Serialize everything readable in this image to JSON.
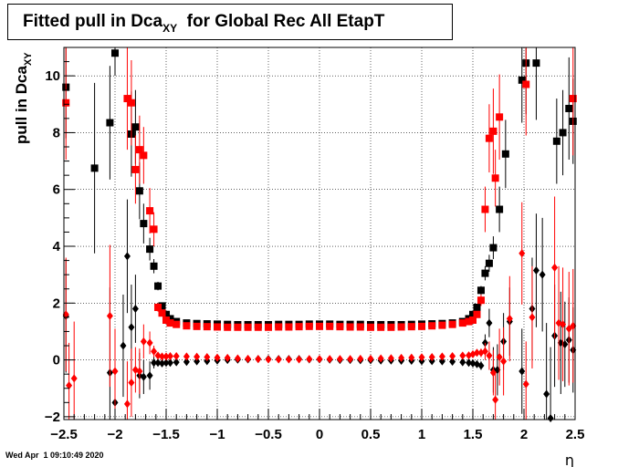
{
  "chart_data": {
    "type": "scatter",
    "title": {
      "main": "Fitted pull in Dca",
      "sub": "XY",
      "tail": "for Global Rec All EtapT"
    },
    "xlabel": "η",
    "ylabel": {
      "main": "pull in Dca",
      "sub": "XY"
    },
    "xlim": [
      -2.5,
      2.5
    ],
    "ylim": [
      -2.1,
      11.0
    ],
    "x_ticks": [
      -2.5,
      -2,
      -1.5,
      -1,
      -0.5,
      0,
      0.5,
      1,
      1.5,
      2,
      2.5
    ],
    "x_tick_labels": [
      "−2.5",
      "−2",
      "−1.5",
      "−1",
      "−0.5",
      "0",
      "0.5",
      "1",
      "1.5",
      "2",
      "2.5"
    ],
    "y_ticks": [
      -2,
      0,
      2,
      4,
      6,
      8,
      10
    ],
    "y_tick_labels": [
      "−2",
      "0",
      "2",
      "4",
      "6",
      "8",
      "10"
    ],
    "grid": true,
    "series": [
      {
        "color": "#000000",
        "marker": "square",
        "points": [
          [
            -2.48,
            9.6,
            1.8
          ],
          [
            -2.2,
            6.75,
            3.0
          ],
          [
            -2.05,
            8.35,
            2.0
          ],
          [
            -2.0,
            10.8,
            0.8
          ],
          [
            -1.84,
            7.95,
            1.5
          ],
          [
            -1.8,
            8.2,
            1.3
          ],
          [
            -1.76,
            5.95,
            1.0
          ],
          [
            -1.72,
            4.8,
            0.7
          ],
          [
            -1.66,
            3.9,
            0.4
          ],
          [
            -1.62,
            3.3,
            0.25
          ],
          [
            -1.58,
            2.6,
            0.15
          ],
          [
            -1.54,
            1.9,
            0.1
          ],
          [
            -1.5,
            1.6,
            0.08
          ],
          [
            -1.46,
            1.45,
            0.06
          ],
          [
            -1.4,
            1.35,
            0.05
          ],
          [
            -1.3,
            1.3,
            0.05
          ],
          [
            -1.2,
            1.28,
            0.05
          ],
          [
            -1.1,
            1.27,
            0.05
          ],
          [
            -1.0,
            1.26,
            0.05
          ],
          [
            -0.9,
            1.25,
            0.05
          ],
          [
            -0.8,
            1.24,
            0.05
          ],
          [
            -0.7,
            1.24,
            0.05
          ],
          [
            -0.6,
            1.24,
            0.05
          ],
          [
            -0.5,
            1.24,
            0.05
          ],
          [
            -0.4,
            1.25,
            0.05
          ],
          [
            -0.3,
            1.25,
            0.05
          ],
          [
            -0.2,
            1.25,
            0.05
          ],
          [
            -0.1,
            1.26,
            0.05
          ],
          [
            0.0,
            1.26,
            0.05
          ],
          [
            0.1,
            1.26,
            0.05
          ],
          [
            0.2,
            1.25,
            0.05
          ],
          [
            0.3,
            1.25,
            0.05
          ],
          [
            0.4,
            1.25,
            0.05
          ],
          [
            0.5,
            1.24,
            0.05
          ],
          [
            0.6,
            1.24,
            0.05
          ],
          [
            0.7,
            1.24,
            0.05
          ],
          [
            0.8,
            1.24,
            0.05
          ],
          [
            0.9,
            1.25,
            0.05
          ],
          [
            1.0,
            1.26,
            0.05
          ],
          [
            1.1,
            1.27,
            0.05
          ],
          [
            1.2,
            1.28,
            0.05
          ],
          [
            1.3,
            1.3,
            0.05
          ],
          [
            1.4,
            1.35,
            0.05
          ],
          [
            1.46,
            1.45,
            0.06
          ],
          [
            1.5,
            1.6,
            0.08
          ],
          [
            1.54,
            1.85,
            0.1
          ],
          [
            1.58,
            2.45,
            0.15
          ],
          [
            1.62,
            3.05,
            0.25
          ],
          [
            1.66,
            3.4,
            0.3
          ],
          [
            1.7,
            3.95,
            0.4
          ],
          [
            1.76,
            5.3,
            0.8
          ],
          [
            1.82,
            7.25,
            1.2
          ],
          [
            1.98,
            9.85,
            1.5
          ],
          [
            2.02,
            10.45,
            1.8
          ],
          [
            2.12,
            10.45,
            2.0
          ],
          [
            2.32,
            7.7,
            1.5
          ],
          [
            2.38,
            8.0,
            1.5
          ],
          [
            2.44,
            8.85,
            1.8
          ],
          [
            2.48,
            8.4,
            1.5
          ]
        ]
      },
      {
        "color": "#ff0000",
        "marker": "square",
        "points": [
          [
            -2.48,
            9.05,
            2.0
          ],
          [
            -1.88,
            9.2,
            1.8
          ],
          [
            -1.84,
            9.05,
            1.5
          ],
          [
            -1.8,
            6.7,
            1.2
          ],
          [
            -1.76,
            7.4,
            1.2
          ],
          [
            -1.72,
            7.2,
            1.0
          ],
          [
            -1.66,
            5.25,
            0.8
          ],
          [
            -1.62,
            4.6,
            0.6
          ],
          [
            -1.58,
            1.85,
            0.15
          ],
          [
            -1.54,
            1.65,
            0.1
          ],
          [
            -1.5,
            1.4,
            0.08
          ],
          [
            -1.46,
            1.3,
            0.06
          ],
          [
            -1.4,
            1.25,
            0.05
          ],
          [
            -1.3,
            1.2,
            0.05
          ],
          [
            -1.2,
            1.18,
            0.05
          ],
          [
            -1.1,
            1.17,
            0.05
          ],
          [
            -1.0,
            1.16,
            0.05
          ],
          [
            -0.9,
            1.15,
            0.05
          ],
          [
            -0.8,
            1.15,
            0.05
          ],
          [
            -0.7,
            1.15,
            0.05
          ],
          [
            -0.6,
            1.15,
            0.05
          ],
          [
            -0.5,
            1.15,
            0.05
          ],
          [
            -0.4,
            1.16,
            0.05
          ],
          [
            -0.3,
            1.16,
            0.05
          ],
          [
            -0.2,
            1.17,
            0.05
          ],
          [
            -0.1,
            1.18,
            0.05
          ],
          [
            0.0,
            1.18,
            0.05
          ],
          [
            0.1,
            1.18,
            0.05
          ],
          [
            0.2,
            1.17,
            0.05
          ],
          [
            0.3,
            1.16,
            0.05
          ],
          [
            0.4,
            1.16,
            0.05
          ],
          [
            0.5,
            1.15,
            0.05
          ],
          [
            0.6,
            1.15,
            0.05
          ],
          [
            0.7,
            1.15,
            0.05
          ],
          [
            0.8,
            1.16,
            0.05
          ],
          [
            0.9,
            1.17,
            0.05
          ],
          [
            1.0,
            1.18,
            0.05
          ],
          [
            1.1,
            1.2,
            0.05
          ],
          [
            1.2,
            1.22,
            0.05
          ],
          [
            1.3,
            1.25,
            0.05
          ],
          [
            1.4,
            1.3,
            0.05
          ],
          [
            1.46,
            1.35,
            0.06
          ],
          [
            1.5,
            1.4,
            0.08
          ],
          [
            1.54,
            1.6,
            0.1
          ],
          [
            1.58,
            2.1,
            0.2
          ],
          [
            1.62,
            5.3,
            0.8
          ],
          [
            1.66,
            7.8,
            1.2
          ],
          [
            1.7,
            8.05,
            1.5
          ],
          [
            1.72,
            6.4,
            1.0
          ],
          [
            1.76,
            8.55,
            1.5
          ],
          [
            2.02,
            9.7,
            1.8
          ],
          [
            2.48,
            9.2,
            2.0
          ]
        ]
      },
      {
        "color": "#000000",
        "marker": "diamond",
        "points": [
          [
            -2.48,
            1.55,
            2.0
          ],
          [
            -2.05,
            -0.45,
            3.0
          ],
          [
            -2.0,
            -1.5,
            2.0
          ],
          [
            -1.92,
            0.5,
            1.8
          ],
          [
            -1.88,
            3.65,
            2.0
          ],
          [
            -1.84,
            1.15,
            1.5
          ],
          [
            -1.8,
            1.8,
            1.2
          ],
          [
            -1.76,
            -0.55,
            0.8
          ],
          [
            -1.72,
            -0.6,
            0.6
          ],
          [
            -1.66,
            -0.55,
            0.5
          ],
          [
            -1.62,
            -0.1,
            0.2
          ],
          [
            -1.58,
            -0.1,
            0.1
          ],
          [
            -1.54,
            -0.12,
            0.08
          ],
          [
            -1.5,
            -0.1,
            0.06
          ],
          [
            -1.46,
            -0.1,
            0.05
          ],
          [
            -1.4,
            -0.08,
            0.05
          ],
          [
            -1.3,
            -0.07,
            0.05
          ],
          [
            -1.2,
            -0.05,
            0.05
          ],
          [
            -1.1,
            -0.04,
            0.05
          ],
          [
            -1.0,
            -0.02,
            0.05
          ],
          [
            -0.9,
            0.0,
            0.05
          ],
          [
            -0.8,
            0.01,
            0.05
          ],
          [
            -0.7,
            0.02,
            0.05
          ],
          [
            -0.6,
            0.03,
            0.05
          ],
          [
            -0.5,
            0.03,
            0.05
          ],
          [
            -0.4,
            0.03,
            0.05
          ],
          [
            -0.3,
            0.03,
            0.05
          ],
          [
            -0.2,
            0.03,
            0.05
          ],
          [
            -0.1,
            0.02,
            0.05
          ],
          [
            0.0,
            0.02,
            0.05
          ],
          [
            0.1,
            0.01,
            0.05
          ],
          [
            0.2,
            0.0,
            0.05
          ],
          [
            0.3,
            0.0,
            0.05
          ],
          [
            0.4,
            -0.01,
            0.05
          ],
          [
            0.5,
            -0.01,
            0.05
          ],
          [
            0.6,
            -0.02,
            0.05
          ],
          [
            0.7,
            -0.02,
            0.05
          ],
          [
            0.8,
            -0.03,
            0.05
          ],
          [
            0.9,
            -0.03,
            0.05
          ],
          [
            1.0,
            -0.04,
            0.05
          ],
          [
            1.1,
            -0.04,
            0.05
          ],
          [
            1.2,
            -0.05,
            0.05
          ],
          [
            1.3,
            -0.06,
            0.05
          ],
          [
            1.4,
            -0.08,
            0.05
          ],
          [
            1.46,
            -0.1,
            0.06
          ],
          [
            1.5,
            -0.12,
            0.08
          ],
          [
            1.54,
            -0.15,
            0.1
          ],
          [
            1.58,
            -0.2,
            0.15
          ],
          [
            1.62,
            0.6,
            0.3
          ],
          [
            1.66,
            1.3,
            0.5
          ],
          [
            1.7,
            -0.35,
            0.8
          ],
          [
            1.74,
            -0.35,
            0.9
          ],
          [
            1.8,
            0.65,
            1.0
          ],
          [
            1.86,
            1.35,
            1.2
          ],
          [
            1.98,
            -0.4,
            1.5
          ],
          [
            2.08,
            1.8,
            1.8
          ],
          [
            2.12,
            3.15,
            2.0
          ],
          [
            2.18,
            3.0,
            2.0
          ],
          [
            2.22,
            -1.2,
            2.5
          ],
          [
            2.26,
            -2.05,
            2.5
          ],
          [
            2.3,
            0.85,
            1.8
          ],
          [
            2.36,
            0.6,
            1.8
          ],
          [
            2.4,
            0.55,
            1.5
          ],
          [
            2.44,
            0.7,
            1.5
          ],
          [
            2.48,
            0.35,
            1.5
          ]
        ]
      },
      {
        "color": "#ff0000",
        "marker": "diamond",
        "points": [
          [
            -2.48,
            1.6,
            2.0
          ],
          [
            -2.45,
            -0.9,
            1.5
          ],
          [
            -2.4,
            -0.65,
            2.0
          ],
          [
            -2.05,
            1.55,
            2.5
          ],
          [
            -2.0,
            -0.4,
            1.5
          ],
          [
            -1.88,
            -1.55,
            1.5
          ],
          [
            -1.84,
            -0.8,
            1.2
          ],
          [
            -1.8,
            -0.35,
            0.8
          ],
          [
            -1.76,
            -0.4,
            0.8
          ],
          [
            -1.72,
            0.65,
            0.6
          ],
          [
            -1.66,
            0.6,
            0.4
          ],
          [
            -1.62,
            0.3,
            0.2
          ],
          [
            -1.58,
            0.15,
            0.1
          ],
          [
            -1.54,
            0.12,
            0.08
          ],
          [
            -1.5,
            0.12,
            0.06
          ],
          [
            -1.46,
            0.13,
            0.05
          ],
          [
            -1.4,
            0.13,
            0.05
          ],
          [
            -1.3,
            0.12,
            0.05
          ],
          [
            -1.2,
            0.11,
            0.05
          ],
          [
            -1.1,
            0.1,
            0.05
          ],
          [
            -1.0,
            0.08,
            0.05
          ],
          [
            -0.9,
            0.07,
            0.05
          ],
          [
            -0.8,
            0.05,
            0.05
          ],
          [
            -0.7,
            0.04,
            0.05
          ],
          [
            -0.6,
            0.03,
            0.05
          ],
          [
            -0.5,
            0.02,
            0.05
          ],
          [
            -0.4,
            0.02,
            0.05
          ],
          [
            -0.3,
            0.02,
            0.05
          ],
          [
            -0.2,
            0.02,
            0.05
          ],
          [
            -0.1,
            0.03,
            0.05
          ],
          [
            0.0,
            0.03,
            0.05
          ],
          [
            0.1,
            0.03,
            0.05
          ],
          [
            0.2,
            0.03,
            0.05
          ],
          [
            0.3,
            0.03,
            0.05
          ],
          [
            0.4,
            0.04,
            0.05
          ],
          [
            0.5,
            0.04,
            0.05
          ],
          [
            0.6,
            0.05,
            0.05
          ],
          [
            0.7,
            0.06,
            0.05
          ],
          [
            0.8,
            0.07,
            0.05
          ],
          [
            0.9,
            0.08,
            0.05
          ],
          [
            1.0,
            0.09,
            0.05
          ],
          [
            1.1,
            0.1,
            0.05
          ],
          [
            1.2,
            0.12,
            0.05
          ],
          [
            1.3,
            0.13,
            0.05
          ],
          [
            1.4,
            0.15,
            0.05
          ],
          [
            1.46,
            0.16,
            0.06
          ],
          [
            1.5,
            0.2,
            0.08
          ],
          [
            1.54,
            0.25,
            0.1
          ],
          [
            1.58,
            0.25,
            0.15
          ],
          [
            1.62,
            0.3,
            0.3
          ],
          [
            1.66,
            0.15,
            0.5
          ],
          [
            1.7,
            -0.45,
            0.8
          ],
          [
            1.72,
            -1.4,
            1.0
          ],
          [
            1.76,
            0.1,
            1.0
          ],
          [
            1.8,
            -0.05,
            1.2
          ],
          [
            1.86,
            1.45,
            1.5
          ],
          [
            1.98,
            3.75,
            1.8
          ],
          [
            2.02,
            -0.85,
            1.5
          ],
          [
            2.08,
            1.5,
            1.8
          ],
          [
            2.3,
            3.25,
            2.5
          ],
          [
            2.34,
            1.3,
            2.0
          ],
          [
            2.38,
            1.25,
            2.0
          ],
          [
            2.44,
            1.1,
            2.0
          ],
          [
            2.48,
            1.2,
            2.0
          ]
        ]
      }
    ]
  },
  "footer_timestamp": "Wed Apr  1 09:10:49 2020"
}
